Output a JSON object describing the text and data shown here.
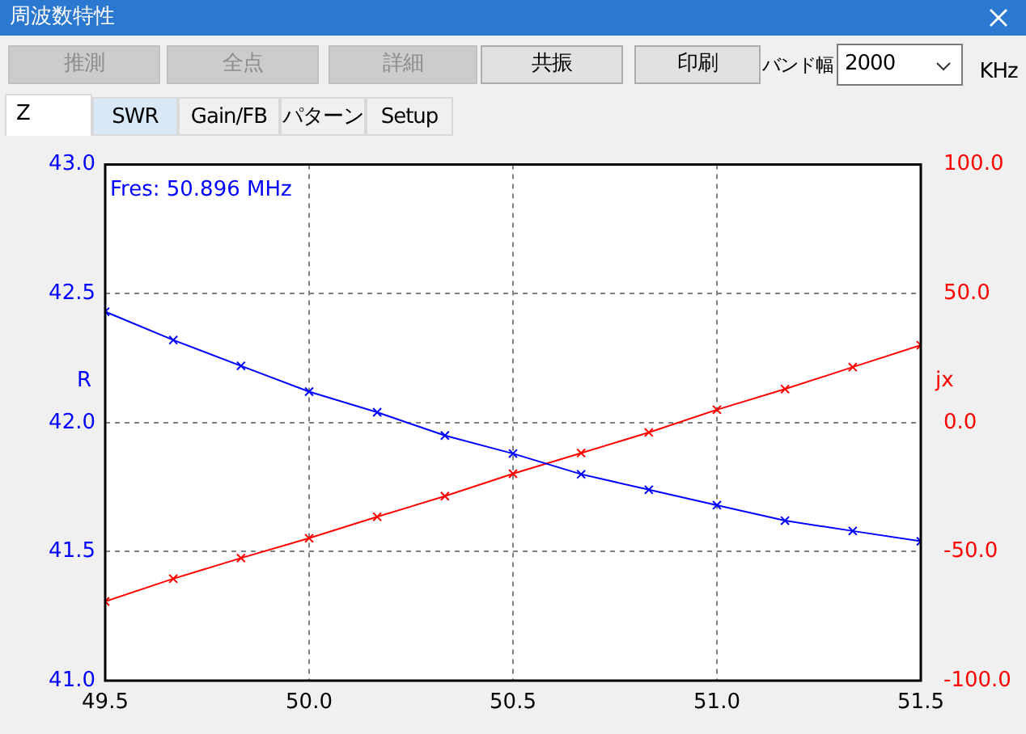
{
  "chart_data": {
    "type": "line",
    "title": "周波数特性",
    "ylabel": "R",
    "y2label": "jx",
    "x": [
      49.5,
      49.667,
      49.833,
      50.0,
      50.167,
      50.333,
      50.5,
      50.667,
      50.833,
      51.0,
      51.167,
      51.333,
      51.5
    ],
    "series": [
      {
        "color": "#0000ff",
        "values": [
          42.43,
          42.32,
          42.22,
          42.12,
          42.04,
          41.95,
          41.88,
          41.8,
          41.74,
          41.68,
          41.62,
          41.58,
          41.54
        ]
      },
      {
        "color": "#ff0000",
        "axis": "y2",
        "values": [
          -69.3,
          -60.5,
          -52.5,
          -44.8,
          -36.5,
          -28.5,
          -19.8,
          -11.8,
          -3.8,
          5,
          13,
          21.5,
          30
        ]
      }
    ],
    "xlim": [
      49.5,
      51.5
    ],
    "xticks": [
      49.5,
      {
        "value": 50,
        "label": "50.0"
      },
      50.5,
      {
        "value": 51,
        "label": "51.0"
      },
      51.5
    ],
    "ylim": [
      41,
      43
    ],
    "yticks": [
      {
        "value": 41,
        "label": "41.0"
      },
      41.5,
      {
        "value": 42,
        "label": "42.0"
      },
      42.5,
      {
        "value": 43,
        "label": "43.0"
      }
    ],
    "y2lim": [
      -100,
      100
    ],
    "y2ticks": [
      {
        "value": -100,
        "label": "-100.0"
      },
      {
        "value": -50,
        "label": "-50.0"
      },
      {
        "value": 0,
        "label": "0.0"
      },
      {
        "value": 50,
        "label": "50.0"
      },
      {
        "value": 100,
        "label": "100.0"
      }
    ],
    "grid": true,
    "marker": "cross",
    "line_style": "solid",
    "annotations": [
      "Fres: 50.896 MHz",
      "推測",
      "全点",
      "詳細",
      "共振",
      "印刷",
      "バンド幅",
      "2000",
      "KHz",
      "Z",
      "SWR",
      "Gain/FB",
      "パターン",
      "Setup"
    ]
  }
}
